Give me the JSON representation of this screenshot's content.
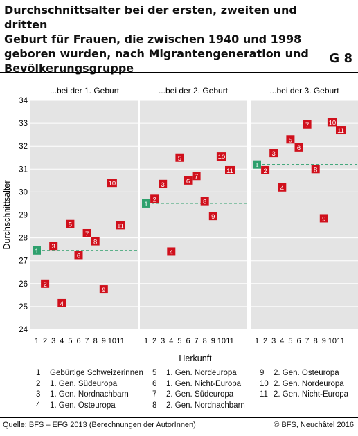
{
  "title": "Durchschnittsalter bei der ersten, zweiten und dritten\nGeburt für Frauen, die zwischen 1940 und 1998\ngeboren wurden, nach Migrantengeneration und\nBevölkerungsgruppe",
  "figure_label": "G 8",
  "source": "Quelle: BFS – EFG 2013 (Berechnungen der AutorInnen)",
  "copyright": "© BFS, Neuchâtel 2016",
  "colors": {
    "red": "#d0101c",
    "green": "#2ea06d",
    "panel_bg": "#e4e4e4",
    "grid": "#ffffff"
  },
  "legend": {
    "col1": [
      {
        "num": "1",
        "label": "Gebürtige Schweizerinnen"
      },
      {
        "num": "2",
        "label": "1. Gen. Südeuropa"
      },
      {
        "num": "3",
        "label": "1. Gen. Nordnachbarn"
      },
      {
        "num": "4",
        "label": "1. Gen. Osteuropa"
      }
    ],
    "col2": [
      {
        "num": "5",
        "label": "1. Gen. Nordeuropa"
      },
      {
        "num": "6",
        "label": "1. Gen. Nicht-Europa"
      },
      {
        "num": "7",
        "label": "2. Gen. Südeuropa"
      },
      {
        "num": "8",
        "label": "2. Gen. Nordnachbarn"
      }
    ],
    "col3": [
      {
        "num": "9",
        "label": "2. Gen. Osteuropa"
      },
      {
        "num": "10",
        "label": "2. Gen. Nordeuropa"
      },
      {
        "num": "11",
        "label": "2. Gen. Nicht-Europa"
      }
    ]
  },
  "chart_data": {
    "type": "scatter",
    "ylabel": "Durchschnittsalter",
    "xlabel": "Herkunft",
    "ylim": [
      24,
      34
    ],
    "yticks": [
      24,
      25,
      26,
      27,
      28,
      29,
      30,
      31,
      32,
      33,
      34
    ],
    "xticks": [
      "1",
      "2",
      "3",
      "4",
      "5",
      "6",
      "7",
      "8",
      "9",
      "10",
      "11"
    ],
    "grid": true,
    "panels": [
      {
        "title": "...bei der 1. Geburt",
        "reference": 27.45,
        "points": [
          {
            "x": 1,
            "y": 27.45
          },
          {
            "x": 2,
            "y": 26.0
          },
          {
            "x": 3,
            "y": 27.65
          },
          {
            "x": 4,
            "y": 25.15
          },
          {
            "x": 5,
            "y": 28.6
          },
          {
            "x": 6,
            "y": 27.25
          },
          {
            "x": 7,
            "y": 28.2
          },
          {
            "x": 8,
            "y": 27.85
          },
          {
            "x": 9,
            "y": 25.75
          },
          {
            "x": 10,
            "y": 30.4
          },
          {
            "x": 11,
            "y": 28.55
          }
        ]
      },
      {
        "title": "...bei der 2. Geburt",
        "reference": 29.5,
        "points": [
          {
            "x": 1,
            "y": 29.5
          },
          {
            "x": 2,
            "y": 29.7
          },
          {
            "x": 3,
            "y": 30.35
          },
          {
            "x": 4,
            "y": 27.4
          },
          {
            "x": 5,
            "y": 31.5
          },
          {
            "x": 6,
            "y": 30.5
          },
          {
            "x": 7,
            "y": 30.7
          },
          {
            "x": 8,
            "y": 29.6
          },
          {
            "x": 9,
            "y": 28.95
          },
          {
            "x": 10,
            "y": 31.55
          },
          {
            "x": 11,
            "y": 30.95
          }
        ]
      },
      {
        "title": "...bei der 3. Geburt",
        "reference": 31.2,
        "points": [
          {
            "x": 1,
            "y": 31.2
          },
          {
            "x": 2,
            "y": 30.95
          },
          {
            "x": 3,
            "y": 31.7
          },
          {
            "x": 4,
            "y": 30.2
          },
          {
            "x": 5,
            "y": 32.3
          },
          {
            "x": 6,
            "y": 31.95
          },
          {
            "x": 7,
            "y": 32.95
          },
          {
            "x": 8,
            "y": 31.0
          },
          {
            "x": 9,
            "y": 28.85
          },
          {
            "x": 10,
            "y": 33.05
          },
          {
            "x": 11,
            "y": 32.7
          }
        ]
      }
    ]
  }
}
